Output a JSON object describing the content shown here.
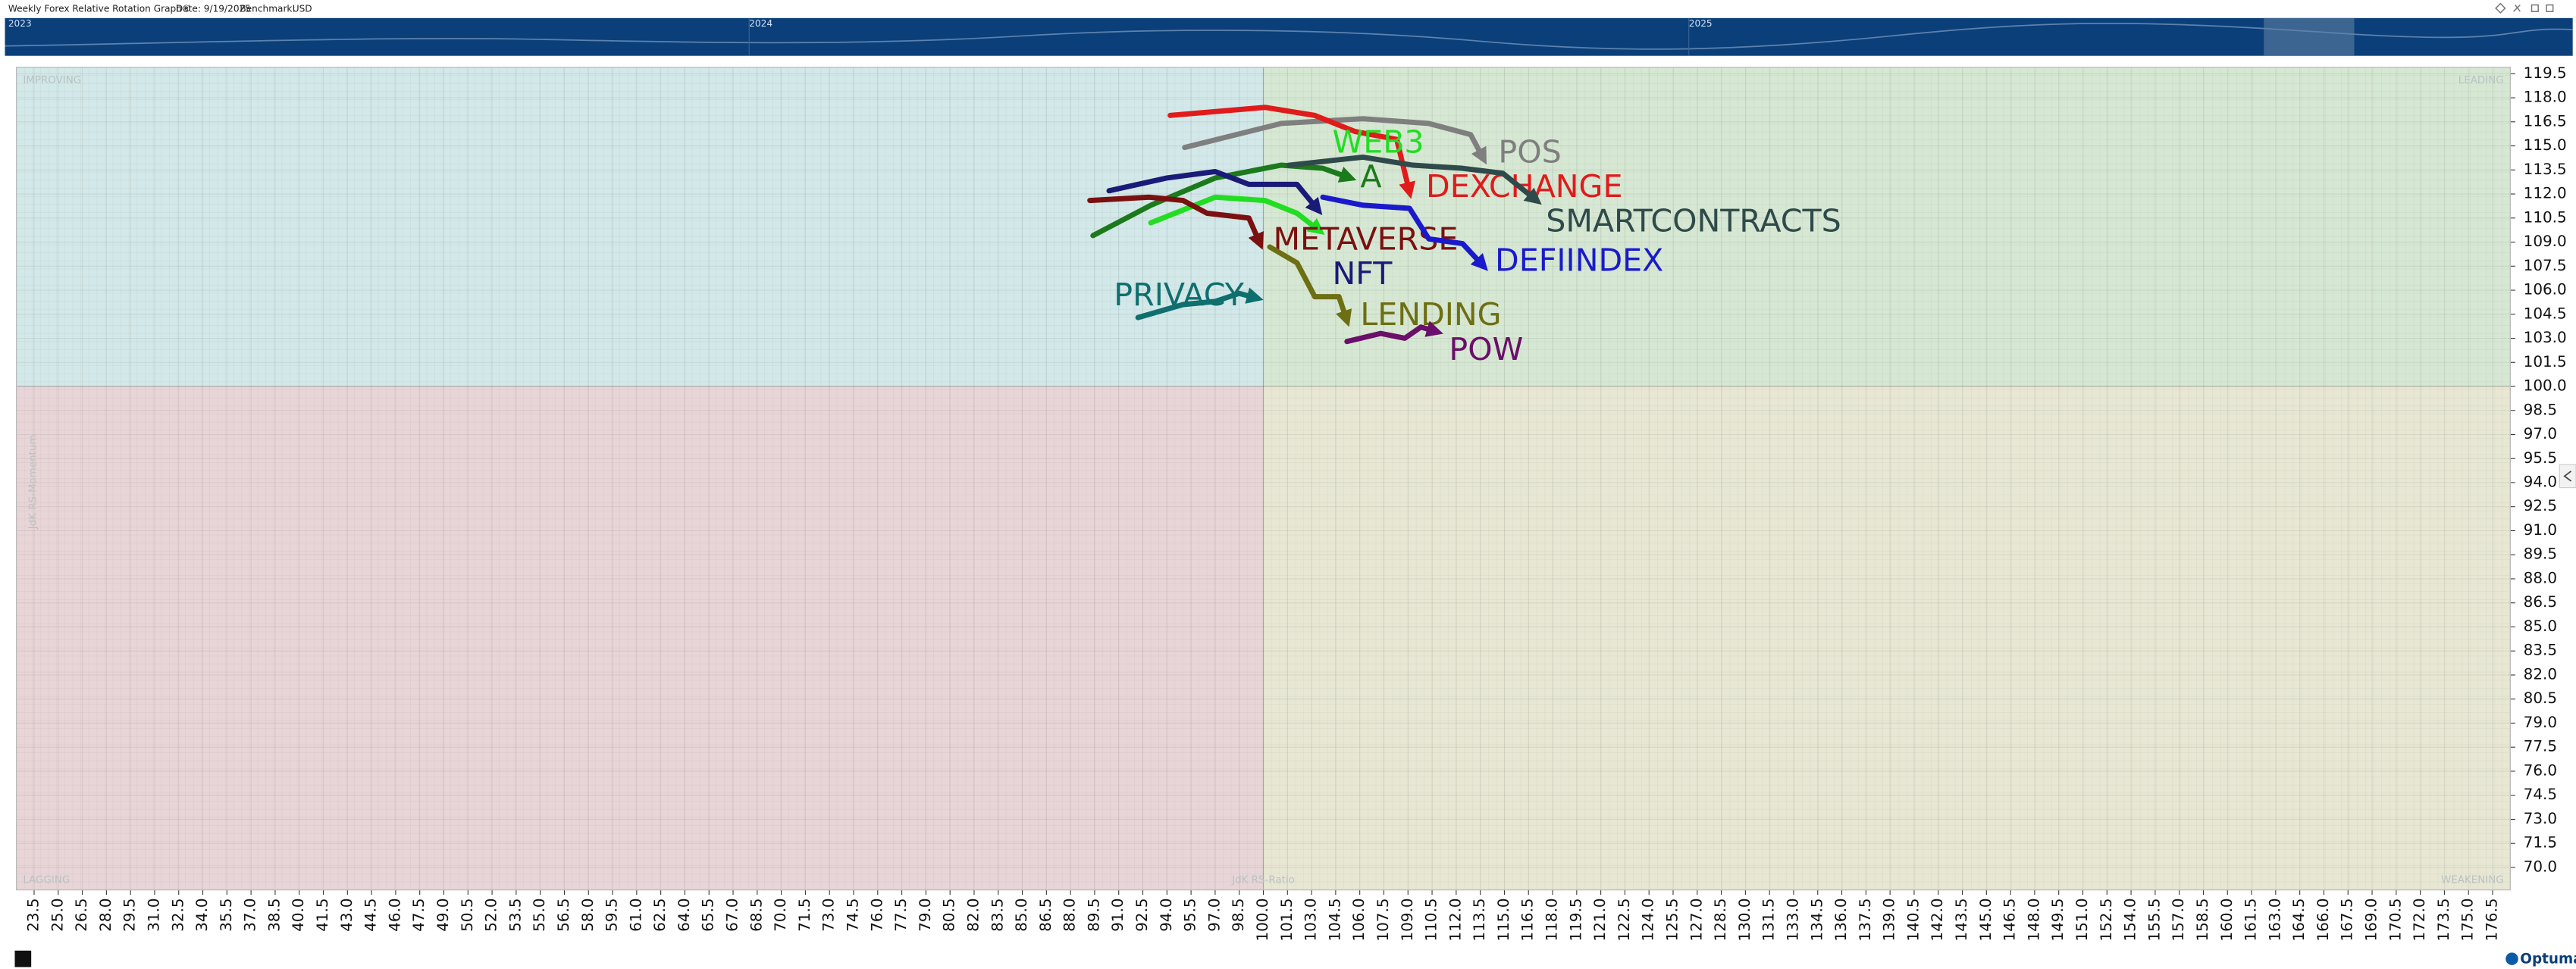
{
  "header": {
    "title": "Weekly Forex Relative Rotation Graph®",
    "date": "Date: 9/19/2025",
    "benchmark_label": "Benchmark:",
    "benchmark": "USD"
  },
  "timeline": {
    "labels": [
      "2023",
      "2024",
      "2025"
    ]
  },
  "footer": {
    "logo": "Optuma"
  },
  "chart_data": {
    "type": "rrg",
    "x_label": "JdK RS-Ratio",
    "y_label": "JdK RS-Momentum",
    "quadrant_center": {
      "x": 100,
      "y": 100
    },
    "quadrants": [
      {
        "label": "IMPROVING",
        "color": "#d3e8e8"
      },
      {
        "label": "LEADING",
        "color": "#d6e8d3"
      },
      {
        "label": "LAGGING",
        "color": "#e8d5d7"
      },
      {
        "label": "WEAKENING",
        "color": "#e7e7d4"
      }
    ],
    "grid": true,
    "xlim": [
      22.4,
      177.6
    ],
    "ylim": [
      68.6,
      119.9
    ],
    "xticks": [
      23.5,
      {
        "value": 25,
        "label": "25.0"
      },
      26.5,
      {
        "value": 28,
        "label": "28.0"
      },
      29.5,
      {
        "value": 31,
        "label": "31.0"
      },
      32.5,
      {
        "value": 34,
        "label": "34.0"
      },
      35.5,
      {
        "value": 37,
        "label": "37.0"
      },
      38.5,
      {
        "value": 40,
        "label": "40.0"
      },
      41.5,
      {
        "value": 43,
        "label": "43.0"
      },
      44.5,
      {
        "value": 46,
        "label": "46.0"
      },
      47.5,
      {
        "value": 49,
        "label": "49.0"
      },
      50.5,
      {
        "value": 52,
        "label": "52.0"
      },
      53.5,
      {
        "value": 55,
        "label": "55.0"
      },
      56.5,
      {
        "value": 58,
        "label": "58.0"
      },
      59.5,
      {
        "value": 61,
        "label": "61.0"
      },
      62.5,
      {
        "value": 64,
        "label": "64.0"
      },
      65.5,
      {
        "value": 67,
        "label": "67.0"
      },
      68.5,
      {
        "value": 70,
        "label": "70.0"
      },
      71.5,
      {
        "value": 73,
        "label": "73.0"
      },
      74.5,
      {
        "value": 76,
        "label": "76.0"
      },
      77.5,
      {
        "value": 79,
        "label": "79.0"
      },
      80.5,
      {
        "value": 82,
        "label": "82.0"
      },
      83.5,
      {
        "value": 85,
        "label": "85.0"
      },
      86.5,
      {
        "value": 88,
        "label": "88.0"
      },
      89.5,
      {
        "value": 91,
        "label": "91.0"
      },
      92.5,
      {
        "value": 94,
        "label": "94.0"
      },
      95.5,
      {
        "value": 97,
        "label": "97.0"
      },
      98.5,
      {
        "value": 100,
        "label": "100.0"
      },
      101.5,
      {
        "value": 103,
        "label": "103.0"
      },
      104.5,
      {
        "value": 106,
        "label": "106.0"
      },
      107.5,
      {
        "value": 109,
        "label": "109.0"
      },
      110.5,
      {
        "value": 112,
        "label": "112.0"
      },
      113.5,
      {
        "value": 115,
        "label": "115.0"
      },
      116.5,
      {
        "value": 118,
        "label": "118.0"
      },
      119.5,
      {
        "value": 121,
        "label": "121.0"
      },
      122.5,
      {
        "value": 124,
        "label": "124.0"
      },
      125.5,
      {
        "value": 127,
        "label": "127.0"
      },
      128.5,
      {
        "value": 130,
        "label": "130.0"
      },
      131.5,
      {
        "value": 133,
        "label": "133.0"
      },
      134.5,
      {
        "value": 136,
        "label": "136.0"
      },
      137.5,
      {
        "value": 139,
        "label": "139.0"
      },
      140.5,
      {
        "value": 142,
        "label": "142.0"
      },
      143.5,
      {
        "value": 145,
        "label": "145.0"
      },
      146.5,
      {
        "value": 148,
        "label": "148.0"
      },
      149.5,
      {
        "value": 151,
        "label": "151.0"
      },
      152.5,
      {
        "value": 154,
        "label": "154.0"
      },
      155.5,
      {
        "value": 157,
        "label": "157.0"
      },
      158.5,
      {
        "value": 160,
        "label": "160.0"
      },
      161.5,
      {
        "value": 163,
        "label": "163.0"
      },
      164.5,
      {
        "value": 166,
        "label": "166.0"
      },
      167.5,
      {
        "value": 169,
        "label": "169.0"
      },
      170.5,
      {
        "value": 172,
        "label": "172.0"
      },
      173.5,
      {
        "value": 175,
        "label": "175.0"
      },
      176.5
    ],
    "yticks": [
      {
        "value": 70,
        "label": "70.0"
      },
      71.5,
      {
        "value": 73,
        "label": "73.0"
      },
      74.5,
      {
        "value": 76,
        "label": "76.0"
      },
      77.5,
      {
        "value": 79,
        "label": "79.0"
      },
      80.5,
      {
        "value": 82,
        "label": "82.0"
      },
      83.5,
      {
        "value": 85,
        "label": "85.0"
      },
      86.5,
      {
        "value": 88,
        "label": "88.0"
      },
      89.5,
      {
        "value": 91,
        "label": "91.0"
      },
      92.5,
      {
        "value": 94,
        "label": "94.0"
      },
      95.5,
      {
        "value": 97,
        "label": "97.0"
      },
      98.5,
      {
        "value": 100,
        "label": "100.0"
      },
      101.5,
      {
        "value": 103,
        "label": "103.0"
      },
      104.5,
      {
        "value": 106,
        "label": "106.0"
      },
      107.5,
      {
        "value": 109,
        "label": "109.0"
      },
      110.5,
      {
        "value": 112,
        "label": "112.0"
      },
      113.5,
      {
        "value": 115,
        "label": "115.0"
      },
      116.5,
      {
        "value": 118,
        "label": "118.0"
      },
      119.5
    ],
    "series": [
      {
        "name": "POS",
        "color": "#7f7f7f",
        "x": [
          95.1,
          101.1,
          106.2,
          110.3,
          112.9,
          113.7
        ],
        "values": [
          114.9,
          116.4,
          116.7,
          116.4,
          115.7,
          114.2
        ]
      },
      {
        "name": "DEXCHANGE",
        "color": "#e01b1b",
        "x": [
          94.2,
          100.1,
          103.2,
          105.7,
          108.3,
          109.1
        ],
        "values": [
          116.9,
          117.4,
          116.9,
          115.9,
          115.4,
          112.1
        ]
      },
      {
        "name": "WEB3",
        "color": "#22dd22",
        "x": [
          93.0,
          97.0,
          100.1,
          102.1,
          103.5
        ],
        "values": [
          110.2,
          111.8,
          111.6,
          110.8,
          109.7
        ]
      },
      {
        "name": "A",
        "color": "#1c7a1c",
        "x": [
          89.4,
          93.0,
          97.0,
          101.1,
          103.7,
          105.4
        ],
        "values": [
          109.4,
          111.3,
          113.0,
          113.8,
          113.6,
          113.0
        ]
      },
      {
        "name": "SMARTCONTRACTS",
        "color": "#2f4a4a",
        "x": [
          101.6,
          106.2,
          109.3,
          112.4,
          114.9,
          117.0
        ],
        "values": [
          113.8,
          114.3,
          113.8,
          113.6,
          113.3,
          111.6
        ]
      },
      {
        "name": "NFT",
        "color": "#1a1a78",
        "x": [
          90.4,
          94.0,
          97.0,
          99.1,
          102.1,
          103.4
        ],
        "values": [
          112.2,
          113.0,
          113.4,
          112.6,
          112.6,
          111.0
        ]
      },
      {
        "name": "METAVERSE",
        "color": "#7a1010",
        "x": [
          89.2,
          92.9,
          95.0,
          96.5,
          99.1,
          99.8
        ],
        "values": [
          111.6,
          111.8,
          111.6,
          110.8,
          110.5,
          108.9
        ]
      },
      {
        "name": "DEFIINDEX",
        "color": "#1a1acc",
        "x": [
          103.7,
          106.2,
          109.1,
          110.3,
          112.4,
          113.7
        ],
        "values": [
          111.8,
          111.3,
          111.1,
          109.2,
          108.9,
          107.5
        ]
      },
      {
        "name": "LENDING",
        "color": "#6e6e12",
        "x": [
          100.4,
          102.1,
          103.2,
          104.7,
          105.2
        ],
        "values": [
          108.7,
          107.7,
          105.6,
          105.6,
          104.1
        ]
      },
      {
        "name": "POW",
        "color": "#6a0f6a",
        "x": [
          105.2,
          107.3,
          108.8,
          109.8,
          110.8
        ],
        "values": [
          102.8,
          103.3,
          103.0,
          103.7,
          103.4
        ]
      },
      {
        "name": "PRIVACY",
        "color": "#0f6e6e",
        "x": [
          92.2,
          95.0,
          97.0,
          98.5,
          99.6
        ],
        "values": [
          104.3,
          105.1,
          105.3,
          105.8,
          105.5
        ]
      }
    ]
  }
}
